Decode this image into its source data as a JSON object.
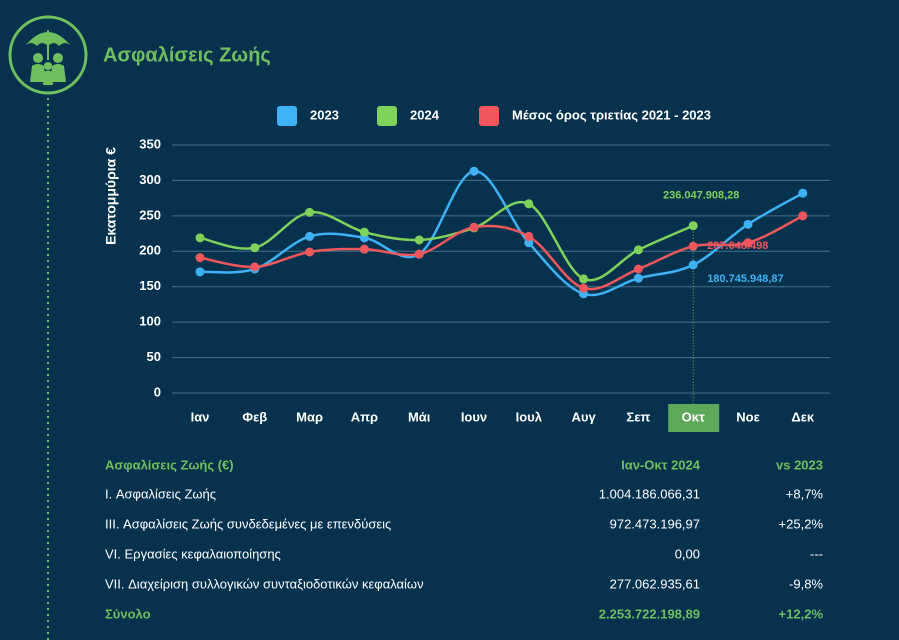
{
  "chart_data": {
    "type": "line",
    "title": "Ασφαλίσεις Ζωής",
    "ylabel": "Εκατομμύρια €",
    "categories": [
      "Ιαν",
      "Φεβ",
      "Μαρ",
      "Απρ",
      "Μάι",
      "Ιουν",
      "Ιουλ",
      "Αυγ",
      "Σεπ",
      "Οκτ",
      "Νοε",
      "Δεκ"
    ],
    "series": [
      {
        "name": "2023",
        "color": "#3fb1f5",
        "values": [
          171,
          175,
          221,
          219,
          196,
          313,
          212,
          140,
          162,
          180.74594887,
          238,
          282
        ],
        "value_labels": [
          null,
          null,
          null,
          null,
          null,
          null,
          null,
          null,
          null,
          "180.745.948,87",
          null,
          null
        ]
      },
      {
        "name": "2024",
        "color": "#7fd35a",
        "values": [
          219,
          205,
          255,
          227,
          216,
          233,
          267,
          161,
          202,
          236.04790828,
          null,
          null
        ],
        "value_labels": [
          null,
          null,
          null,
          null,
          null,
          null,
          null,
          null,
          null,
          "236.047.908,28",
          null,
          null
        ]
      },
      {
        "name": "Μέσος όρος τριετίας 2021 - 2023",
        "color": "#f0575d",
        "values": [
          191,
          178,
          199,
          203,
          196,
          234,
          221,
          148,
          175,
          207.048498,
          212,
          250
        ],
        "value_labels": [
          null,
          null,
          null,
          null,
          null,
          null,
          null,
          null,
          null,
          "207.048.498",
          null,
          null
        ]
      }
    ],
    "ylim": [
      0,
      350
    ],
    "yticks": [
      0,
      50,
      100,
      150,
      200,
      250,
      300,
      350
    ],
    "grid": true,
    "highlight_index": 9,
    "legend": "top"
  },
  "table": {
    "header": [
      "Ασφαλίσεις Ζωής (€)",
      "Ιαν-Οκτ 2024",
      "vs 2023"
    ],
    "rows": [
      [
        "I. Ασφαλίσεις  Ζωής",
        "1.004.186.066,31",
        "+8,7%"
      ],
      [
        "III. Ασφαλίσεις  Ζωής  συνδεδεμένες με επενδύσεις",
        "972.473.196,97",
        "+25,2%"
      ],
      [
        "VI. Εργασίες κεφαλαιοποίησης",
        "0,00",
        "---"
      ],
      [
        "VII. Διαχείριση συλλογικών συνταξιοδοτικών κεφαλαίων",
        "277.062.935,61",
        "-9,8%"
      ]
    ],
    "total": [
      "Σύνολο",
      "2.253.722.198,89",
      "+12,2%"
    ]
  }
}
